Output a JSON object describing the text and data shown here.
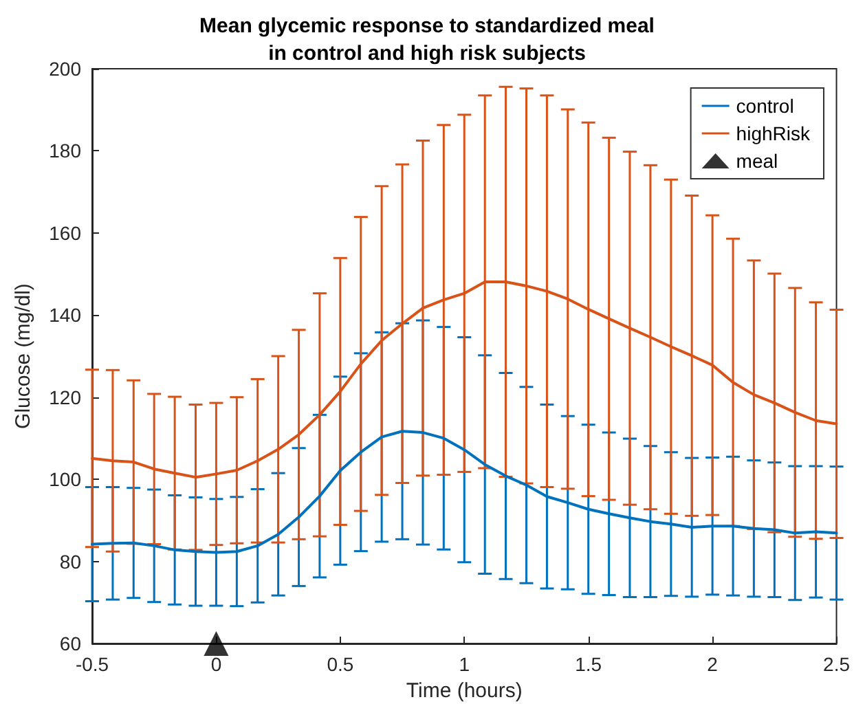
{
  "chart_data": {
    "type": "line",
    "title": "Mean glycemic response to standardized meal\nin control and high risk subjects",
    "xlabel": "Time (hours)",
    "ylabel": "Glucose (mg/dl)",
    "x": [
      -0.5,
      -0.417,
      -0.333,
      -0.25,
      -0.167,
      -0.083,
      0,
      0.083,
      0.167,
      0.25,
      0.333,
      0.417,
      0.5,
      0.583,
      0.667,
      0.75,
      0.833,
      0.917,
      1,
      1.083,
      1.167,
      1.25,
      1.333,
      1.417,
      1.5,
      1.583,
      1.667,
      1.75,
      1.833,
      1.917,
      2,
      2.083,
      2.167,
      2.25,
      2.333,
      2.417,
      2.5
    ],
    "series": [
      {
        "name": "control",
        "color": "#0072bd",
        "values": [
          84.2,
          84.4,
          84.5,
          83.8,
          82.8,
          82.4,
          82.2,
          82.4,
          83.8,
          86.6,
          90.8,
          95.9,
          102.1,
          106.6,
          110.3,
          111.7,
          111.4,
          110.0,
          107.2,
          103.6,
          100.8,
          98.6,
          95.8,
          94.3,
          92.7,
          91.6,
          90.6,
          89.7,
          89.1,
          88.3,
          88.6,
          88.6,
          88.0,
          87.7,
          86.9,
          87.2,
          86.9
        ],
        "errors": [
          13.9,
          13.7,
          13.4,
          13.7,
          13.3,
          13.2,
          13.0,
          13.3,
          13.8,
          14.9,
          16.8,
          19.8,
          22.9,
          24.1,
          25.5,
          26.3,
          27.3,
          27.1,
          27.4,
          26.6,
          25.1,
          23.9,
          22.4,
          21.1,
          20.6,
          19.8,
          19.3,
          18.4,
          17.5,
          16.9,
          16.7,
          16.9,
          16.6,
          16.4,
          16.3,
          16.0,
          16.2
        ]
      },
      {
        "name": "highRisk",
        "color": "#d95319",
        "values": [
          105.1,
          104.5,
          104.2,
          102.5,
          101.5,
          100.5,
          101.3,
          102.2,
          104.5,
          107.3,
          110.9,
          115.7,
          121.4,
          128.1,
          133.8,
          137.9,
          141.7,
          143.7,
          145.3,
          148.1,
          148.1,
          147.1,
          145.8,
          143.9,
          141.4,
          139.1,
          136.8,
          134.6,
          132.3,
          130.1,
          127.8,
          123.6,
          120.6,
          118.6,
          116.3,
          114.3,
          113.5
        ],
        "errors": [
          21.6,
          22.1,
          19.9,
          18.3,
          18.6,
          17.7,
          17.3,
          17.8,
          19.9,
          22.7,
          25.5,
          29.6,
          32.5,
          35.8,
          37.6,
          38.8,
          40.8,
          42.6,
          43.5,
          45.4,
          47.5,
          48.1,
          47.7,
          46.2,
          45.5,
          44.1,
          43.0,
          41.9,
          40.7,
          39.0,
          36.5,
          35.0,
          32.7,
          31.5,
          30.3,
          28.8,
          27.8
        ]
      },
      {
        "name": "meal",
        "type": "scatter",
        "marker": "triangle",
        "color": "#000000",
        "x": [
          0
        ],
        "values": [
          60
        ]
      }
    ],
    "xlim": [
      -0.5,
      2.5
    ],
    "xticks": [
      -0.5,
      0,
      0.5,
      1,
      1.5,
      2,
      2.5
    ],
    "ylim": [
      60,
      200
    ],
    "yticks": [
      60,
      80,
      100,
      120,
      140,
      160,
      180,
      200
    ],
    "grid": false,
    "legend": "top right",
    "marker": "none",
    "line_style": "solid"
  }
}
